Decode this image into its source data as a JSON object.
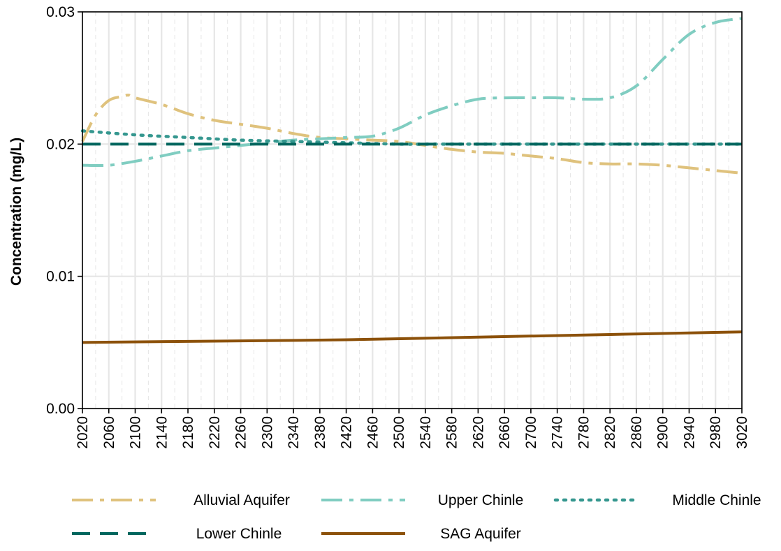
{
  "chart_data": {
    "type": "line",
    "title": "",
    "xlabel": "",
    "ylabel": "Concentration (mg/L)",
    "xlim": [
      2020,
      3020
    ],
    "ylim": [
      0,
      0.03
    ],
    "x_ticks": [
      "2020",
      "2060",
      "2100",
      "2140",
      "2180",
      "2220",
      "2260",
      "2300",
      "2340",
      "2380",
      "2420",
      "2460",
      "2500",
      "2540",
      "2580",
      "2620",
      "2660",
      "2700",
      "2740",
      "2780",
      "2820",
      "2860",
      "2900",
      "2940",
      "2980",
      "3020"
    ],
    "y_ticks": [
      "0.00",
      "0.01",
      "0.02",
      "0.03"
    ],
    "grid": true,
    "legend_position": "bottom",
    "series": [
      {
        "name": "Alluvial Aquifer",
        "color": "#dfc27d",
        "dash": "dashdot",
        "x": [
          2020,
          2040,
          2060,
          2080,
          2090,
          2100,
          2140,
          2180,
          2220,
          2260,
          2300,
          2340,
          2380,
          2420,
          2460,
          2500,
          2540,
          2580,
          2620,
          2660,
          2700,
          2740,
          2780,
          2820,
          2860,
          2900,
          2940,
          2980,
          3020
        ],
        "y": [
          0.0202,
          0.0222,
          0.0233,
          0.0236,
          0.0237,
          0.0235,
          0.023,
          0.0223,
          0.0218,
          0.0215,
          0.0212,
          0.0208,
          0.0205,
          0.0204,
          0.0203,
          0.0202,
          0.0199,
          0.0196,
          0.0194,
          0.0193,
          0.0191,
          0.0189,
          0.0186,
          0.0185,
          0.0185,
          0.0184,
          0.0182,
          0.018,
          0.0178
        ]
      },
      {
        "name": "Upper Chinle",
        "color": "#80cdc1",
        "dash": "dashdot",
        "x": [
          2020,
          2060,
          2100,
          2140,
          2180,
          2220,
          2260,
          2300,
          2340,
          2380,
          2420,
          2460,
          2500,
          2540,
          2580,
          2620,
          2660,
          2700,
          2740,
          2780,
          2820,
          2860,
          2900,
          2940,
          2980,
          3020
        ],
        "y": [
          0.0184,
          0.0184,
          0.0187,
          0.0191,
          0.0195,
          0.0197,
          0.0199,
          0.0201,
          0.0203,
          0.0204,
          0.0205,
          0.0206,
          0.0212,
          0.0222,
          0.0229,
          0.0234,
          0.0235,
          0.0235,
          0.0235,
          0.0234,
          0.0235,
          0.0244,
          0.0264,
          0.0283,
          0.0292,
          0.0295
        ]
      },
      {
        "name": "Middle Chinle",
        "color": "#35978f",
        "dash": "dotted",
        "x": [
          2020,
          2100,
          2180,
          2260,
          2340,
          2420,
          2500,
          2580,
          2660,
          2740,
          2820,
          2900,
          2980,
          3020
        ],
        "y": [
          0.021,
          0.0207,
          0.0205,
          0.0203,
          0.0202,
          0.0201,
          0.02,
          0.02,
          0.02,
          0.02,
          0.02,
          0.02,
          0.02,
          0.02
        ]
      },
      {
        "name": "Lower Chinle",
        "color": "#01665e",
        "dash": "dashed",
        "x": [
          2020,
          3020
        ],
        "y": [
          0.02,
          0.02
        ]
      },
      {
        "name": "SAG Aquifer",
        "color": "#8c510a",
        "dash": "solid",
        "x": [
          2020,
          2220,
          2420,
          2620,
          2820,
          3020
        ],
        "y": [
          0.005,
          0.0051,
          0.0052,
          0.0054,
          0.0056,
          0.0058
        ]
      }
    ]
  }
}
